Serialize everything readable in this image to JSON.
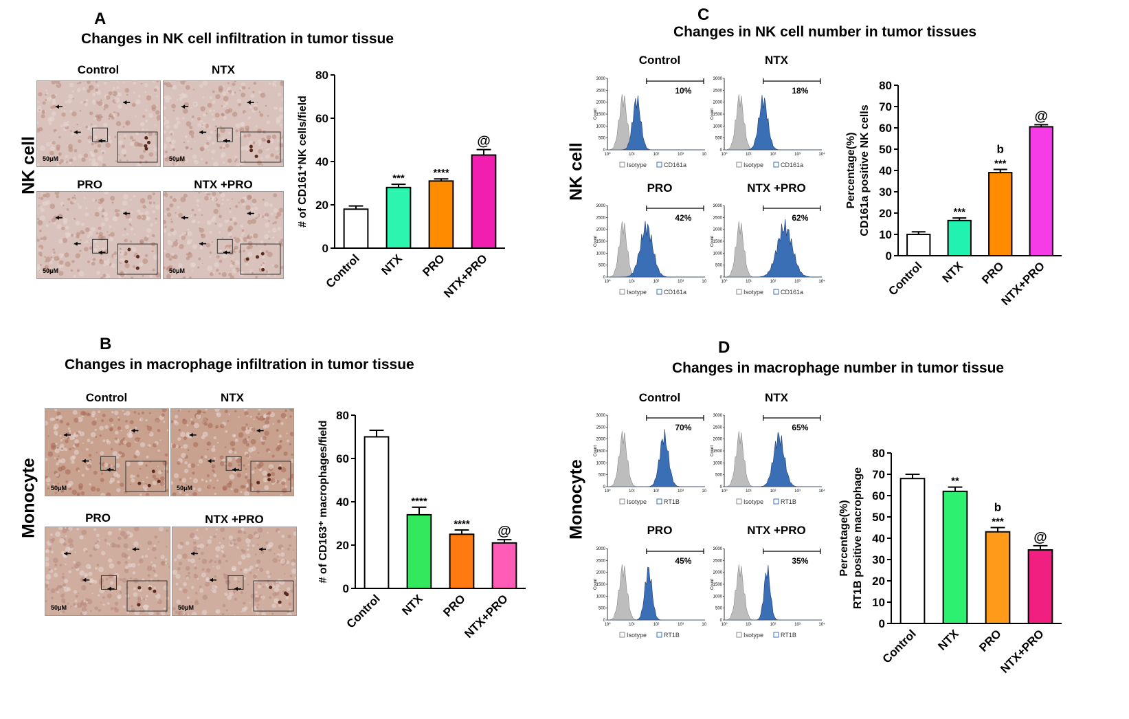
{
  "panels": {
    "A": {
      "label": "A",
      "title": "Changes in NK cell infiltration in tumor tissue",
      "side_label": "NK cell",
      "images": [
        {
          "label": "Control",
          "scale": "50μM"
        },
        {
          "label": "NTX",
          "scale": "50μM"
        },
        {
          "label": "PRO",
          "scale": "50μM"
        },
        {
          "label": "NTX +PRO",
          "scale": "50μM"
        }
      ]
    },
    "B": {
      "label": "B",
      "title": "Changes in macrophage infiltration in tumor tissue",
      "side_label": "Monocyte",
      "images": [
        {
          "label": "Control",
          "scale": "50μM"
        },
        {
          "label": "NTX",
          "scale": "50μM"
        },
        {
          "label": "PRO",
          "scale": "50μM"
        },
        {
          "label": "NTX +PRO",
          "scale": "50μM"
        }
      ]
    },
    "C": {
      "label": "C",
      "title": "Changes in NK cell number in tumor tissues",
      "side_label": "NK cell",
      "flow": [
        {
          "label": "Control",
          "pct": "10%",
          "legend_a": "Isotype",
          "legend_b": "CD161a"
        },
        {
          "label": "NTX",
          "pct": "18%",
          "legend_a": "Isotype",
          "legend_b": "CD161a"
        },
        {
          "label": "PRO",
          "pct": "42%",
          "legend_a": "Isotype",
          "legend_b": "CD161a"
        },
        {
          "label": "NTX +PRO",
          "pct": "62%",
          "legend_a": "Isotype",
          "legend_b": "CD161a"
        }
      ]
    },
    "D": {
      "label": "D",
      "title": "Changes in macrophage number in tumor tissue",
      "side_label": "Monocyte",
      "flow": [
        {
          "label": "Control",
          "pct": "70%",
          "legend_a": "Isotype",
          "legend_b": "RT1B"
        },
        {
          "label": "NTX",
          "pct": "65%",
          "legend_a": "Isotype",
          "legend_b": "RT1B"
        },
        {
          "label": "PRO",
          "pct": "45%",
          "legend_a": "Isotype",
          "legend_b": "RT1B"
        },
        {
          "label": "NTX +PRO",
          "pct": "35%",
          "legend_a": "Isotype",
          "legend_b": "RT1B"
        }
      ]
    }
  },
  "flow_axis": {
    "y_ticks": [
      "3000",
      "2500",
      "2000",
      "1500",
      "1000",
      "500",
      "0"
    ],
    "y_label": "Count",
    "x_ticks": [
      "10⁰",
      "10¹",
      "10²",
      "10³",
      "10⁴"
    ]
  },
  "colors": {
    "control": "#ffffff",
    "ntx_A": "#2cf5b0",
    "pro": "#ff8c00",
    "ntxpro_A": "#f01fb0",
    "ntx_B": "#33e85c",
    "pro_B": "#ff7a10",
    "ntxpro_B": "#ff5cb8",
    "ntx_C": "#22f2b0",
    "ntxpro_C": "#f53ce6",
    "ntx_D": "#2df070",
    "pro_D": "#ff9a1a",
    "ntxpro_D": "#f01f80",
    "flow_blue": "#3b6fb5",
    "flow_gray": "#bdbdbd"
  },
  "chart_data": [
    {
      "panel": "A",
      "type": "bar",
      "categories": [
        "Control",
        "NTX",
        "PRO",
        "NTX+PRO"
      ],
      "values": [
        18,
        28,
        31,
        43
      ],
      "errors": [
        1.5,
        1.5,
        1,
        2.5
      ],
      "annotations": [
        "",
        "***",
        "****",
        "@"
      ],
      "annotations_top": [
        "",
        "",
        "",
        ""
      ],
      "ylabel": "# of CD161⁺NK cells/field",
      "ylim": [
        0,
        80
      ],
      "yticks": [
        0,
        20,
        40,
        60,
        80
      ]
    },
    {
      "panel": "B",
      "type": "bar",
      "categories": [
        "Control",
        "NTX",
        "PRO",
        "NTX+PRO"
      ],
      "values": [
        70,
        34,
        25,
        21
      ],
      "errors": [
        3,
        3.5,
        2,
        1.5
      ],
      "annotations": [
        "",
        "****",
        "****",
        "@"
      ],
      "annotations_top": [
        "",
        "",
        "",
        ""
      ],
      "ylabel": "# of CD163⁺ macrophages/field",
      "ylim": [
        0,
        80
      ],
      "yticks": [
        0,
        20,
        40,
        60,
        80
      ]
    },
    {
      "panel": "C",
      "type": "bar",
      "categories": [
        "Control",
        "NTX",
        "PRO",
        "NTX+PRO"
      ],
      "values": [
        10,
        16.5,
        39,
        60.5
      ],
      "errors": [
        1.2,
        1.2,
        1.5,
        1
      ],
      "annotations": [
        "",
        "***",
        "***",
        "@"
      ],
      "annotations_top": [
        "",
        "",
        "b",
        ""
      ],
      "ylabel": "Percentage(%)",
      "ylabel2": "CD161a positive NK cells",
      "ylim": [
        0,
        80
      ],
      "yticks": [
        0,
        10,
        20,
        30,
        40,
        50,
        60,
        70,
        80
      ]
    },
    {
      "panel": "D",
      "type": "bar",
      "categories": [
        "Control",
        "NTX",
        "PRO",
        "NTX+PRO"
      ],
      "values": [
        68,
        62,
        43,
        34.5
      ],
      "errors": [
        2,
        2,
        2,
        2
      ],
      "annotations": [
        "",
        "**",
        "***",
        "@"
      ],
      "annotations_top": [
        "",
        "",
        "b",
        ""
      ],
      "ylabel": "Percentage(%)",
      "ylabel2": "RT1B positive macrophage",
      "ylim": [
        0,
        80
      ],
      "yticks": [
        0,
        10,
        20,
        30,
        40,
        50,
        60,
        70,
        80
      ]
    }
  ]
}
